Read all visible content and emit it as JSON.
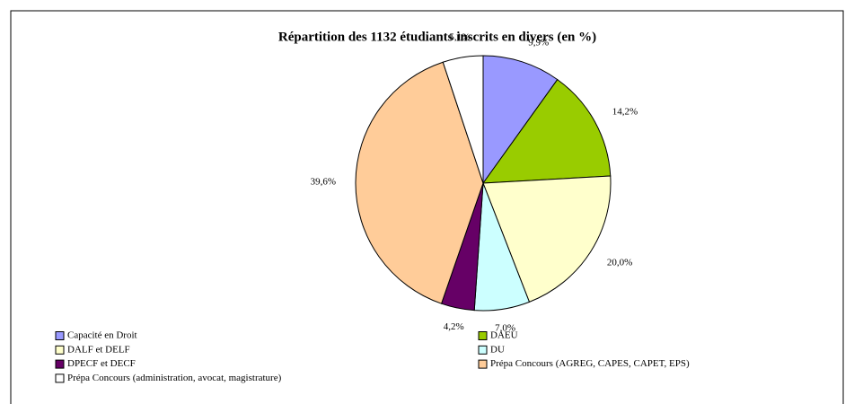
{
  "chart_data": {
    "type": "pie",
    "title": "Répartition des 1132 étudiants inscrits en divers (en %)",
    "categories": [
      "Capacité en Droit",
      "DAEU",
      "DALF et DELF",
      "DU",
      "DPECF et DECF",
      "Prépa Concours (AGREG, CAPES, CAPET, EPS)",
      "Prépa Concours (administration, avocat, magistrature)"
    ],
    "values": [
      9.9,
      14.2,
      20.0,
      7.0,
      4.2,
      39.6,
      5.1
    ],
    "value_labels": [
      "9,9%",
      "14,2%",
      "20,0%",
      "7,0%",
      "4,2%",
      "39,6%",
      "5,1%"
    ],
    "colors": [
      "#9999ff",
      "#99cc00",
      "#ffffcc",
      "#ccffff",
      "#660066",
      "#ffcc99",
      "#ffffff"
    ],
    "legend": "bottom"
  }
}
